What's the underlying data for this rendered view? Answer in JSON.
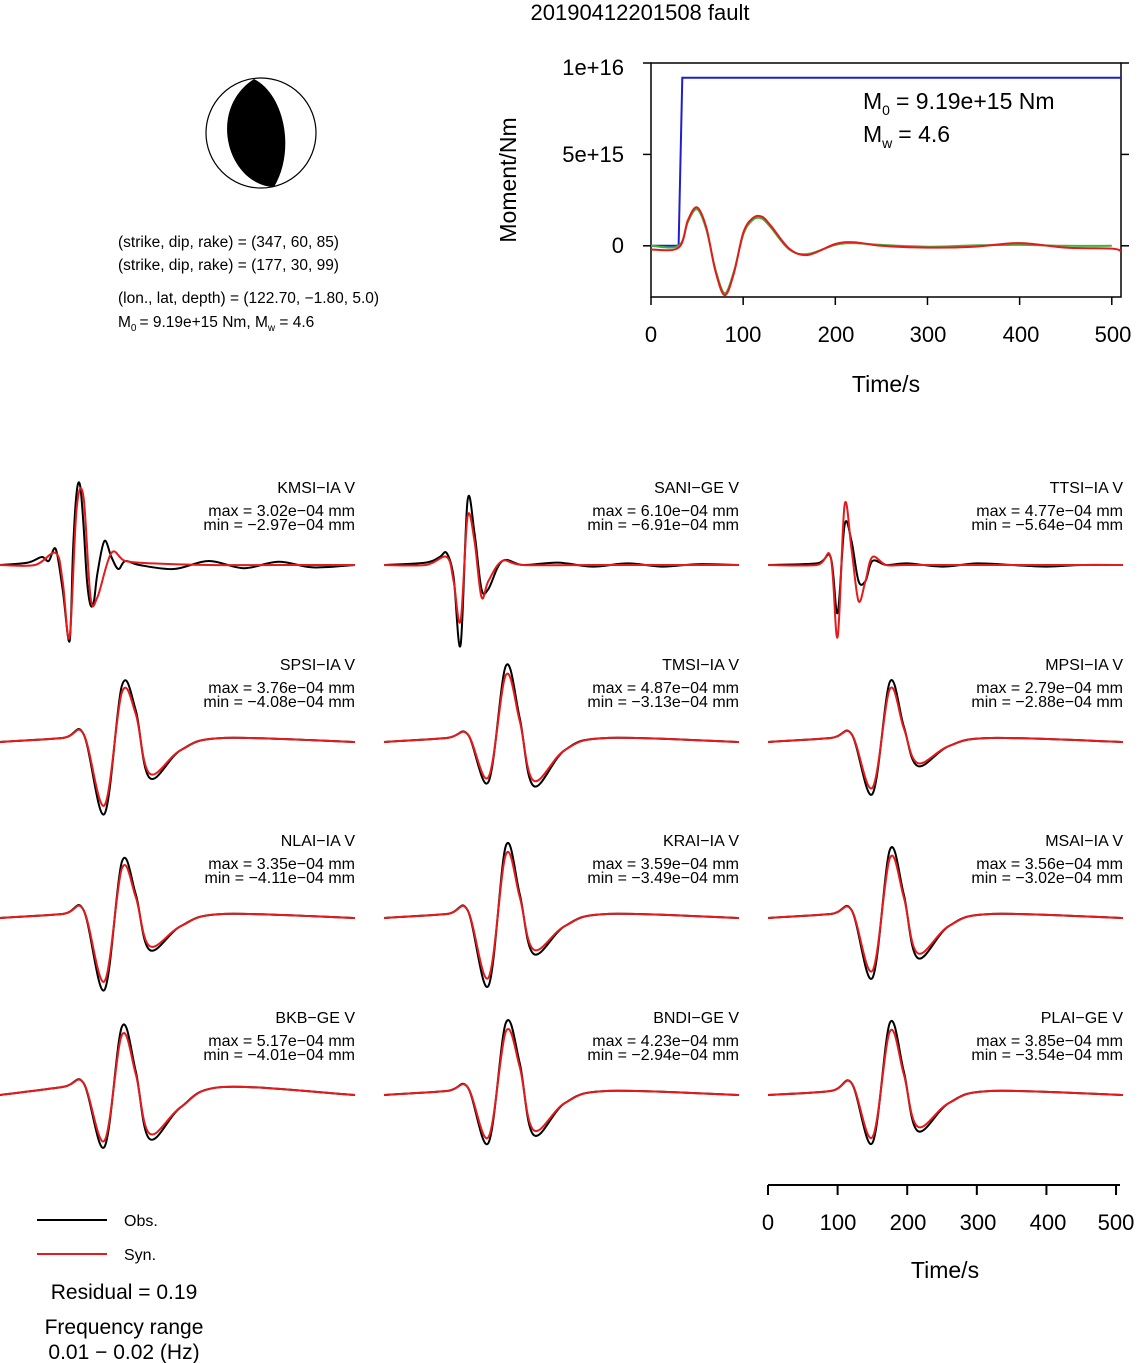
{
  "title": "20190412201508 fault",
  "mechanism": {
    "line1": "(strike, dip, rake) = (347, 60, 85)",
    "line2": "(strike, dip, rake) = (177, 30, 99)",
    "line3": "(lon., lat, depth) = (122.70, −1.80, 5.0)",
    "m0_text": "= 9.19e+15 Nm, M",
    "mw_text": " = 4.6",
    "sub0": "0",
    "subw": "w"
  },
  "moment_plot": {
    "ylabel": "Moment/Nm",
    "xlabel": "Time/s",
    "yticks": [
      "1e+16",
      "5e+15",
      "0"
    ],
    "xticks": [
      "0",
      "100",
      "200",
      "300",
      "400",
      "500"
    ],
    "m0_label": "= 9.19e+15 Nm",
    "mw_label": "= 4.6",
    "sub0": "0",
    "subw": "w"
  },
  "waveform_axis": {
    "xlabel": "Time/s",
    "xticks": [
      "0",
      "100",
      "200",
      "300",
      "400",
      "500"
    ]
  },
  "legend": {
    "obs": "Obs.",
    "syn": "Syn.",
    "residual": "Residual = 0.19",
    "freq_title": "Frequency range",
    "freq_value": "0.01 − 0.02 (Hz)"
  },
  "colors": {
    "obs": "#000000",
    "syn": "#e41a1c",
    "moment_cumulative": "#1f1fcc",
    "moment_rate_green": "#3cb43c",
    "moment_rate_red": "#e41a1c"
  },
  "stations": [
    {
      "name": "KMSI−IA V",
      "max": "max = 3.02e−04 mm",
      "min": "min = −2.97e−04 mm"
    },
    {
      "name": "SANI−GE V",
      "max": "max = 6.10e−04 mm",
      "min": "min = −6.91e−04 mm"
    },
    {
      "name": "TTSI−IA V",
      "max": "max = 4.77e−04 mm",
      "min": "min = −5.64e−04 mm"
    },
    {
      "name": "SPSI−IA V",
      "max": "max = 3.76e−04 mm",
      "min": "min = −4.08e−04 mm"
    },
    {
      "name": "TMSI−IA V",
      "max": "max = 4.87e−04 mm",
      "min": "min = −3.13e−04 mm"
    },
    {
      "name": "MPSI−IA V",
      "max": "max = 2.79e−04 mm",
      "min": "min = −2.88e−04 mm"
    },
    {
      "name": "NLAI−IA V",
      "max": "max = 3.35e−04 mm",
      "min": "min = −4.11e−04 mm"
    },
    {
      "name": "KRAI−IA V",
      "max": "max = 3.59e−04 mm",
      "min": "min = −3.49e−04 mm"
    },
    {
      "name": "MSAI−IA V",
      "max": "max = 3.56e−04 mm",
      "min": "min = −3.02e−04 mm"
    },
    {
      "name": "BKB−GE V",
      "max": "max = 5.17e−04 mm",
      "min": "min = −4.01e−04 mm"
    },
    {
      "name": "BNDI−GE V",
      "max": "max = 4.23e−04 mm",
      "min": "min = −2.94e−04 mm"
    },
    {
      "name": "PLAI−GE V",
      "max": "max = 3.85e−04 mm",
      "min": "min = −3.54e−04 mm"
    }
  ],
  "chart_data": [
    {
      "type": "line",
      "title": "20190412201508 fault",
      "xlabel": "Time/s",
      "ylabel": "Moment/Nm",
      "xlim": [
        0,
        510
      ],
      "ylim": [
        -2800000000000000.0,
        1e+16
      ],
      "series": [
        {
          "x": [
            0,
            30,
            34,
            510
          ],
          "values": [
            0,
            0,
            9190000000000000.0,
            9190000000000000.0
          ]
        },
        {
          "x": [
            0,
            30,
            40,
            50,
            60,
            70,
            80,
            90,
            100,
            110,
            120,
            130,
            150,
            170,
            200,
            220,
            250,
            300,
            350,
            400,
            450,
            500
          ],
          "values": [
            0,
            0,
            1300000000000000.0,
            2000000000000000.0,
            900000000000000.0,
            -1300000000000000.0,
            -2600000000000000.0,
            -1400000000000000.0,
            600000000000000.0,
            1400000000000000.0,
            1500000000000000.0,
            1000000000000000.0,
            -200000000000000.0,
            -450000000000000.0,
            50000000000000.0,
            150000000000000.0,
            50000000000000.0,
            -50000000000000.0,
            20000000000000.0,
            50000000000000.0,
            0.0,
            0.0
          ]
        },
        {
          "x": [
            0,
            30,
            40,
            50,
            60,
            70,
            80,
            90,
            100,
            110,
            120,
            130,
            150,
            170,
            200,
            220,
            250,
            300,
            350,
            400,
            450,
            500,
            510
          ],
          "values": [
            -200000000000000.0,
            -100000000000000.0,
            1400000000000000.0,
            2100000000000000.0,
            1000000000000000.0,
            -1400000000000000.0,
            -2700000000000000.0,
            -1500000000000000.0,
            700000000000000.0,
            1500000000000000.0,
            1600000000000000.0,
            1100000000000000.0,
            -150000000000000.0,
            -500000000000000.0,
            100000000000000.0,
            200000000000000.0,
            0.0,
            -100000000000000.0,
            -50000000000000.0,
            150000000000000.0,
            -100000000000000.0,
            -150000000000000.0,
            -300000000000000.0
          ]
        }
      ]
    },
    {
      "type": "line",
      "note": "",
      "xlabel": "Time/s",
      "xlim": [
        0,
        510
      ],
      "traces": [
        {
          "station": "KMSI−IA V",
          "obs_x": [
            0,
            40,
            60,
            70,
            80,
            90,
            100,
            105,
            110,
            115,
            120,
            125,
            130,
            135,
            140,
            150,
            160,
            170,
            180,
            200,
            250,
            300,
            350,
            400,
            450,
            510
          ],
          "obs": [
            0,
            0.03,
            0.1,
            0.05,
            0.2,
            -0.3,
            -0.95,
            0.2,
            0.9,
            1.0,
            0.5,
            -0.2,
            -0.5,
            -0.45,
            -0.1,
            0.3,
            0.1,
            -0.05,
            0.05,
            0.0,
            -0.05,
            0.05,
            -0.04,
            0.04,
            -0.03,
            0.0
          ],
          "syn_x": [
            0,
            50,
            80,
            90,
            100,
            110,
            120,
            130,
            140,
            160,
            180,
            220,
            300,
            400,
            510
          ],
          "syn": [
            0,
            0.0,
            0.15,
            -0.2,
            -0.9,
            0.7,
            0.85,
            -0.4,
            -0.4,
            0.15,
            0.05,
            0.02,
            0.0,
            0.0,
            0.0
          ]
        },
        {
          "station": "SANI−GE V",
          "obs_x": [
            0,
            60,
            80,
            90,
            100,
            110,
            120,
            130,
            140,
            150,
            170,
            200,
            250,
            300,
            350,
            400,
            450,
            510
          ],
          "obs": [
            0,
            0.03,
            0.1,
            0.15,
            -0.15,
            -1.0,
            0.8,
            0.4,
            -0.3,
            -0.3,
            0.05,
            0.0,
            0.03,
            -0.02,
            0.02,
            -0.02,
            0.01,
            0.0
          ],
          "syn_x": [
            0,
            60,
            90,
            100,
            110,
            120,
            130,
            140,
            150,
            170,
            200,
            300,
            400,
            510
          ],
          "syn": [
            0,
            0.0,
            0.1,
            -0.2,
            -0.7,
            0.6,
            0.3,
            -0.4,
            -0.2,
            0.05,
            0.0,
            0.0,
            0.0,
            0.0
          ]
        },
        {
          "station": "TTSI−IA V",
          "obs_x": [
            0,
            70,
            90,
            100,
            110,
            120,
            130,
            140,
            150,
            170,
            200,
            250,
            300,
            350,
            400,
            450,
            510
          ],
          "obs": [
            0,
            0.02,
            0.1,
            -0.6,
            0.5,
            0.3,
            -0.2,
            -0.2,
            0.05,
            0.0,
            0.02,
            -0.02,
            0.02,
            0.0,
            -0.02,
            0.0,
            0.0
          ],
          "syn_x": [
            0,
            70,
            90,
            100,
            110,
            120,
            130,
            140,
            150,
            170,
            200,
            300,
            400,
            510
          ],
          "syn": [
            0,
            0.0,
            0.1,
            -0.9,
            0.75,
            0.2,
            -0.45,
            -0.2,
            0.1,
            0.0,
            0.0,
            0.0,
            0.0,
            0.0
          ]
        },
        {
          "station": "SPSI−IA V",
          "obs": [
            0,
            0.05,
            0.1,
            -0.9,
            0.7,
            0.4,
            -0.45,
            -0.1,
            0.05,
            0.0
          ]
        },
        {
          "station": "TMSI−IA V",
          "obs": [
            0,
            0.05,
            0.1,
            -0.5,
            0.95,
            0.3,
            -0.55,
            -0.1,
            0.05,
            0.0
          ]
        },
        {
          "station": "MPSI−IA V",
          "obs": [
            0,
            0.05,
            0.1,
            -0.65,
            0.75,
            0.2,
            -0.3,
            -0.05,
            0.05,
            0.0
          ]
        },
        {
          "station": "NLAI−IA V",
          "obs": [
            0,
            0.05,
            0.1,
            -0.9,
            0.7,
            0.3,
            -0.4,
            -0.1,
            0.05,
            0.0
          ]
        },
        {
          "station": "KRAI−IA V",
          "obs": [
            0,
            0.05,
            0.1,
            -0.85,
            0.9,
            0.3,
            -0.45,
            -0.1,
            0.05,
            0.0
          ]
        },
        {
          "station": "MSAI−IA V",
          "obs": [
            0,
            0.05,
            0.1,
            -0.75,
            0.85,
            0.3,
            -0.5,
            -0.1,
            0.05,
            0.0
          ]
        },
        {
          "station": "BKB−GE V",
          "obs": [
            0,
            0.1,
            0.15,
            -0.65,
            0.85,
            0.3,
            -0.55,
            -0.15,
            0.1,
            0.0
          ]
        },
        {
          "station": "BNDI−GE V",
          "obs": [
            0,
            0.05,
            0.1,
            -0.6,
            0.9,
            0.4,
            -0.5,
            -0.1,
            0.05,
            0.0
          ]
        },
        {
          "station": "PLAI−GE V",
          "obs": [
            0,
            0.05,
            0.15,
            -0.6,
            0.9,
            0.3,
            -0.45,
            -0.1,
            0.05,
            0.0
          ]
        }
      ]
    }
  ]
}
